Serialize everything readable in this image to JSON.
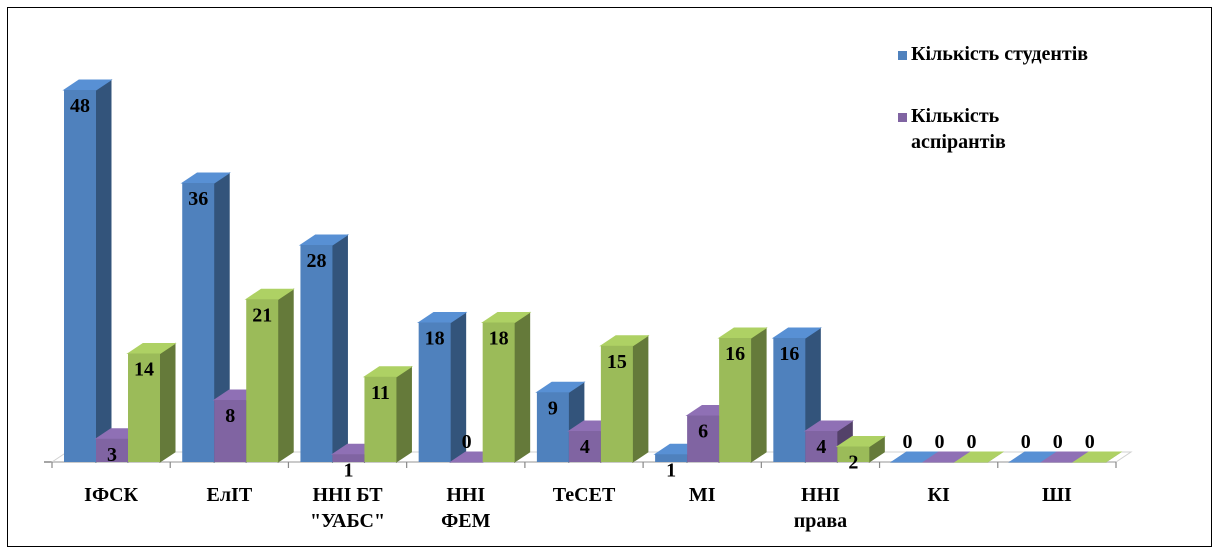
{
  "chart_data": {
    "type": "bar",
    "categories": [
      [
        "ІФСК"
      ],
      [
        "ЕлІТ"
      ],
      [
        "ННІ БТ",
        "\"УАБС\""
      ],
      [
        "ННІ",
        "ФЕМ"
      ],
      [
        "ТеСЕТ"
      ],
      [
        "МІ"
      ],
      [
        "ННІ",
        "права"
      ],
      [
        "КІ"
      ],
      [
        "ШІ"
      ]
    ],
    "series": [
      {
        "name": "Кількість студентів",
        "color": "#4f81bd",
        "values": [
          48,
          36,
          28,
          18,
          9,
          1,
          16,
          0,
          0
        ]
      },
      {
        "name": "Кількість аспірантів",
        "color": "#8064a2",
        "values": [
          3,
          8,
          1,
          0,
          4,
          6,
          4,
          0,
          0
        ]
      },
      {
        "name": "",
        "color": "#9bbb59",
        "values": [
          14,
          21,
          11,
          18,
          15,
          16,
          2,
          0,
          0
        ]
      }
    ],
    "legend": {
      "position": "right",
      "entries": [
        [
          "Кількість студентів"
        ],
        [
          "Кількість",
          "аспірантів"
        ]
      ]
    },
    "ylim": [
      0,
      48
    ],
    "grid": false,
    "style": "3d-column"
  }
}
